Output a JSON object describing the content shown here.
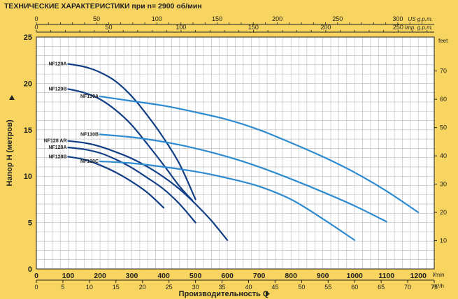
{
  "header": {
    "title": "ТЕХНИЧЕСКИЕ ХАРАКТЕРИСТИКИ при n= 2900 об/мин"
  },
  "colors": {
    "background": "#f7d560",
    "plot_background": "#ffffff",
    "grid": "#b8b8b8",
    "dark_series": "#123f86",
    "light_series": "#2e8bd0",
    "axis": "#222222"
  },
  "chart_data": {
    "type": "line",
    "title": "ТЕХНИЧЕСКИЕ ХАРАКТЕРИСТИКИ при n= 2900 об/мин",
    "xlabel": "Производительность Q",
    "ylabel": "Напор H  (метров)",
    "x_unit": "l/min",
    "x_unit_m3": "m³/h",
    "y_right_unit": "feet",
    "top_axis_1_unit": "US g.p.m.",
    "top_axis_2_unit": "Imp. g.p.m.",
    "xlim": [
      0,
      1250
    ],
    "ylim": [
      0,
      25
    ],
    "grid": true,
    "x_ticks": [
      "0",
      "100",
      "200",
      "300",
      "400",
      "500",
      "600",
      "700",
      "800",
      "900",
      "1000",
      "1100",
      "1200"
    ],
    "y_ticks": [
      "0",
      "5",
      "10",
      "15",
      "20",
      "25"
    ],
    "m3h_ticks": [
      "0",
      "5",
      "10",
      "15",
      "20",
      "25",
      "30",
      "35",
      "40",
      "45",
      "50",
      "55",
      "60",
      "65",
      "70",
      "75"
    ],
    "feet_ticks": [
      "10",
      "20",
      "30",
      "40",
      "50",
      "60",
      "70"
    ],
    "usgpm_ticks": [
      "0",
      "50",
      "100",
      "150",
      "200",
      "250",
      "300"
    ],
    "impgpm_ticks": [
      "0",
      "50",
      "100",
      "150",
      "200",
      "250"
    ],
    "series": [
      {
        "name": "NF129A",
        "tone": "dark",
        "x": [
          100,
          150,
          200,
          250,
          300,
          350,
          400,
          450,
          500
        ],
        "y": [
          22.1,
          21.8,
          21.2,
          20.2,
          18.6,
          16.5,
          14.1,
          11.3,
          7.5
        ]
      },
      {
        "name": "NF129B",
        "tone": "dark",
        "x": [
          100,
          150,
          200,
          250,
          300,
          350,
          400,
          450,
          490
        ],
        "y": [
          19.4,
          19.0,
          18.3,
          17.1,
          15.5,
          13.4,
          11.2,
          8.9,
          7.4
        ]
      },
      {
        "name": "NF130A",
        "tone": "light",
        "x": [
          200,
          300,
          400,
          500,
          600,
          700,
          800,
          900,
          1000,
          1100,
          1200
        ],
        "y": [
          18.6,
          18.1,
          17.6,
          16.9,
          16.1,
          15.0,
          13.6,
          12.1,
          10.4,
          8.4,
          6.1
        ]
      },
      {
        "name": "NF130B",
        "tone": "light",
        "x": [
          200,
          300,
          400,
          500,
          600,
          700,
          800,
          900,
          1000,
          1100
        ],
        "y": [
          14.5,
          14.2,
          13.7,
          13.0,
          12.1,
          11.0,
          9.7,
          8.3,
          6.8,
          5.1
        ]
      },
      {
        "name": "NF128 AR",
        "tone": "dark",
        "x": [
          100,
          150,
          200,
          250,
          300,
          350,
          400,
          450,
          500,
          550,
          600
        ],
        "y": [
          13.8,
          13.6,
          13.2,
          12.6,
          11.9,
          11.0,
          9.9,
          8.6,
          7.0,
          5.2,
          3.1
        ]
      },
      {
        "name": "NF128A",
        "tone": "dark",
        "x": [
          100,
          150,
          200,
          250,
          300,
          350,
          400,
          450,
          500
        ],
        "y": [
          13.1,
          12.9,
          12.5,
          11.8,
          10.9,
          9.8,
          8.6,
          7.0,
          5.0
        ]
      },
      {
        "name": "NF128B",
        "tone": "dark",
        "x": [
          100,
          150,
          200,
          250,
          300,
          350,
          400
        ],
        "y": [
          12.1,
          11.8,
          11.2,
          10.4,
          9.4,
          8.2,
          6.6
        ]
      },
      {
        "name": "NF130C",
        "tone": "light",
        "x": [
          200,
          300,
          400,
          500,
          600,
          700,
          800,
          900,
          1000
        ],
        "y": [
          11.6,
          11.4,
          11.0,
          10.5,
          9.8,
          8.9,
          7.5,
          5.4,
          3.1
        ]
      }
    ]
  }
}
